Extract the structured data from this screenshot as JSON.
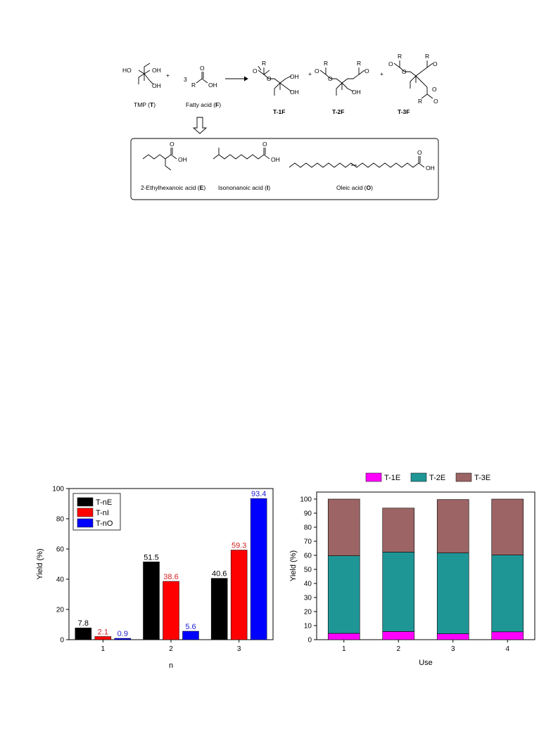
{
  "scheme": {
    "reactants": {
      "tmp_label": "TMP (",
      "tmp_bold": "T",
      "tmp_close": ")",
      "plus": "+",
      "coef": "3",
      "fatty_label": "Fatty acid (",
      "fatty_bold": "F",
      "fatty_close": ")",
      "r_group": "R",
      "oh": "OH",
      "ho": "HO",
      "o": "O"
    },
    "products": [
      "T-1F",
      "T-2F",
      "T-3F"
    ],
    "acids": [
      {
        "name": "2-Ethylhexanoic acid (",
        "bold": "E",
        "close": ")"
      },
      {
        "name": "Isononanoic acid (",
        "bold": "I",
        "close": ")"
      },
      {
        "name": "Oleic acid (",
        "bold": "O",
        "close": ")"
      }
    ]
  },
  "chart_data": [
    {
      "type": "bar",
      "categories": [
        "1",
        "2",
        "3"
      ],
      "series": [
        {
          "name": "T-nE",
          "color": "#000000",
          "label_color": "#000000",
          "values": [
            7.8,
            51.5,
            40.6
          ],
          "labels": [
            "7.8",
            "51.5",
            "40.6"
          ]
        },
        {
          "name": "T-nI",
          "color": "#ff0000",
          "label_color": "#d42020",
          "values": [
            2.1,
            38.6,
            59.3
          ],
          "labels": [
            "2.1",
            "38.6",
            "59.3"
          ]
        },
        {
          "name": "T-nO",
          "color": "#0000ff",
          "label_color": "#2020d0",
          "values": [
            0.9,
            5.6,
            93.4
          ],
          "labels": [
            "0.9",
            "5.6",
            "93.4"
          ]
        }
      ],
      "xlabel": "n",
      "ylabel": "Yield (%)",
      "ylim": [
        0,
        100
      ],
      "yticks": [
        "0",
        "20",
        "40",
        "60",
        "80",
        "100"
      ],
      "legend": "top-left",
      "legend_labels": [
        "T-nE",
        "T-nI",
        "T-nO"
      ]
    },
    {
      "type": "bar",
      "stacked": true,
      "categories": [
        "1",
        "2",
        "3",
        "4"
      ],
      "series": [
        {
          "name": "T-1E",
          "color": "#ff00ff",
          "values": [
            4.5,
            5.8,
            4.2,
            5.6
          ]
        },
        {
          "name": "T-2E",
          "color": "#1f9696",
          "values": [
            55.2,
            56.5,
            57.5,
            54.6
          ]
        },
        {
          "name": "T-3E",
          "color": "#9c6464",
          "values": [
            40.3,
            31.3,
            38.0,
            39.8
          ]
        }
      ],
      "xlabel": "Use",
      "ylabel": "Yield (%)",
      "ylim": [
        0,
        105
      ],
      "yticks": [
        "0",
        "10",
        "20",
        "30",
        "40",
        "50",
        "60",
        "70",
        "80",
        "90",
        "100"
      ],
      "legend": "top",
      "legend_labels": [
        "T-1E",
        "T-2E",
        "T-3E"
      ]
    }
  ]
}
